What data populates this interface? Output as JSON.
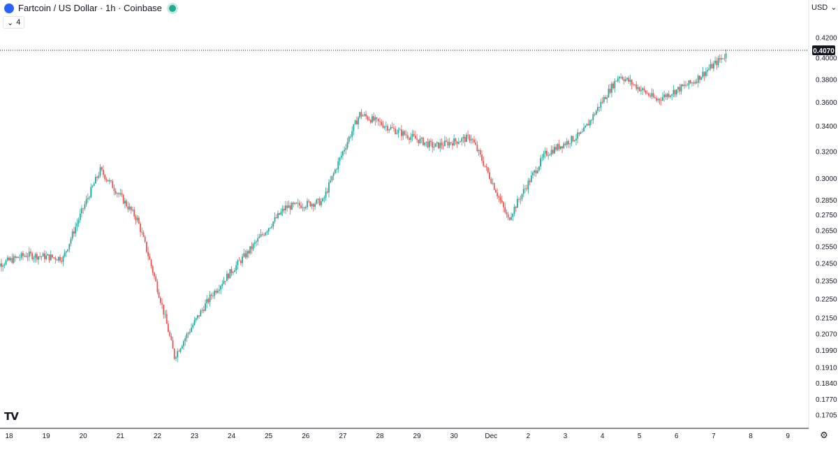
{
  "header": {
    "symbol_title": "Fartcoin / US Dollar · 1h · Coinbase",
    "indicator_count": "4",
    "currency": "USD"
  },
  "icons": {
    "logo": "fartcoin-logo-icon",
    "live": "market-open-icon",
    "collapse": "chevron-down-icon",
    "currency_menu": "chevron-down-icon",
    "settings": "gear-icon",
    "brand": "tradingview-logo-icon"
  },
  "brand_text": "TV",
  "chart_data": {
    "type": "candlestick",
    "price_scale": "log",
    "y_ticks": [
      "0.4200",
      "0.4000",
      "0.3800",
      "0.3600",
      "0.3400",
      "0.3200",
      "0.3000",
      "0.2850",
      "0.2750",
      "0.2650",
      "0.2550",
      "0.2450",
      "0.2350",
      "0.2250",
      "0.2150",
      "0.2070",
      "0.1990",
      "0.1910",
      "0.1840",
      "0.1770",
      "0.1705"
    ],
    "x_ticks": [
      "18",
      "19",
      "20",
      "21",
      "22",
      "23",
      "24",
      "25",
      "26",
      "27",
      "28",
      "29",
      "30",
      "Dec",
      "2",
      "3",
      "4",
      "5",
      "6",
      "7",
      "8",
      "9"
    ],
    "last_price": "0.4070",
    "colors": {
      "up": "#26a69a",
      "down": "#ef5350",
      "last_price_bg": "#131722"
    },
    "daily_closes": [
      {
        "date": "18",
        "close": 0.25
      },
      {
        "date": "19",
        "close": 0.248
      },
      {
        "date": "20",
        "close": 0.306
      },
      {
        "date": "21",
        "close": 0.272
      },
      {
        "date": "22",
        "close": 0.196
      },
      {
        "date": "23",
        "close": 0.227
      },
      {
        "date": "24",
        "close": 0.252
      },
      {
        "date": "25",
        "close": 0.28
      },
      {
        "date": "26",
        "close": 0.284
      },
      {
        "date": "27",
        "close": 0.35
      },
      {
        "date": "28",
        "close": 0.336
      },
      {
        "date": "29",
        "close": 0.324
      },
      {
        "date": "30",
        "close": 0.331
      },
      {
        "date": "Dec",
        "close": 0.272
      },
      {
        "date": "2",
        "close": 0.318
      },
      {
        "date": "3",
        "close": 0.334
      },
      {
        "date": "4",
        "close": 0.384
      },
      {
        "date": "5",
        "close": 0.362
      },
      {
        "date": "6",
        "close": 0.378
      },
      {
        "date": "7",
        "close": 0.407
      }
    ]
  }
}
